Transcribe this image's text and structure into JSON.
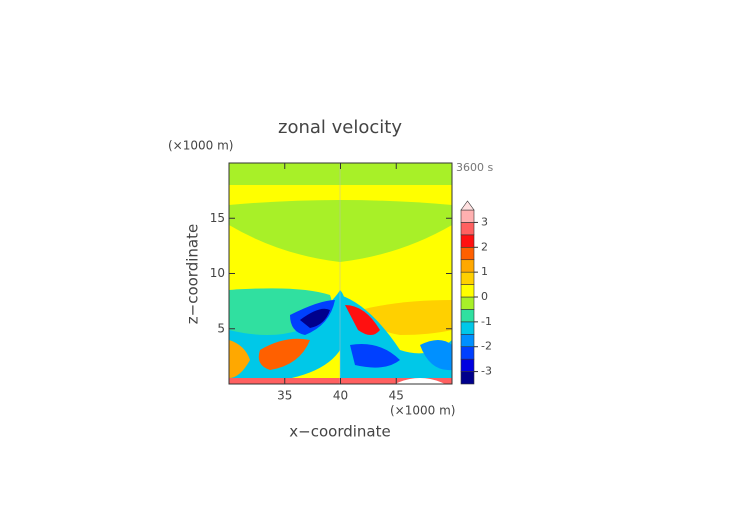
{
  "chart_data": {
    "type": "contour",
    "title": "zonal velocity",
    "x_label": "x−coordinate",
    "y_label": "z−coordinate",
    "x_unit": "(×1000 m)",
    "y_unit": "(×1000 m)",
    "time_label": "3600 s",
    "xlim": [
      30,
      50
    ],
    "xticks": [
      35,
      40,
      45
    ],
    "ylim": [
      0,
      20
    ],
    "yticks": [
      5,
      10,
      15
    ],
    "levels": [
      -3.5,
      -3,
      -2.5,
      -2,
      -1.5,
      -1,
      -0.5,
      0,
      0.5,
      1,
      1.5,
      2,
      2.5,
      3,
      3.5
    ],
    "colors": [
      "#00008c",
      "#0000e0",
      "#0040ff",
      "#0090ff",
      "#00c8e8",
      "#30e0a0",
      "#a8f028",
      "#ffff00",
      "#ffd000",
      "#ffa800",
      "#ff6000",
      "#ff1010",
      "#ff6060",
      "#ffb0b0"
    ],
    "over_color": "#ffe0e0",
    "colorbar_ticks": [
      -3,
      -2,
      -1,
      0,
      1,
      2,
      3
    ]
  }
}
